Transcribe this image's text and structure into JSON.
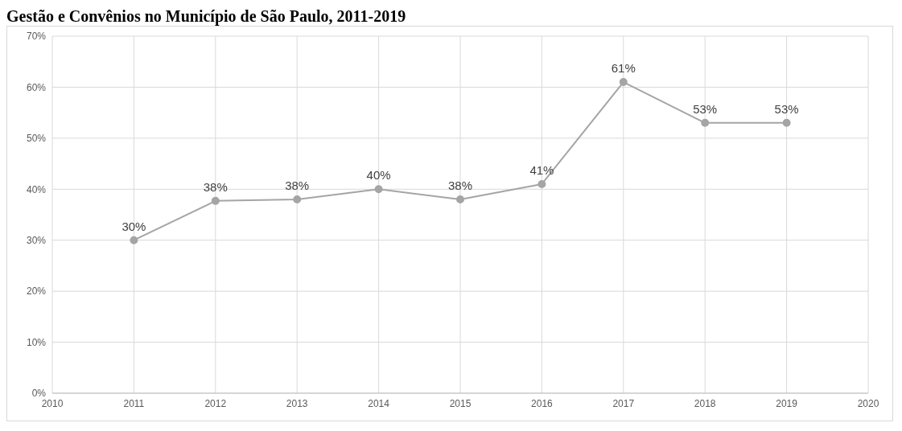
{
  "chart_data": {
    "type": "line",
    "title": "Gestão e Convênios no Município de São Paulo, 2011-2019",
    "x": [
      2011,
      2012,
      2013,
      2014,
      2015,
      2016,
      2017,
      2018,
      2019
    ],
    "series": [
      {
        "color": "#a5a5a5",
        "values": [
          30,
          37.7,
          38,
          40,
          38,
          41,
          61,
          53,
          53
        ],
        "value_labels": [
          "30%",
          "38%",
          "38%",
          "40%",
          "38%",
          "41%",
          "61%",
          "53%",
          "53%"
        ]
      }
    ],
    "xlim": [
      2010,
      2020
    ],
    "xticks": [
      2010,
      2011,
      2012,
      2013,
      2014,
      2015,
      2016,
      2017,
      2018,
      2019,
      2020
    ],
    "ylim": [
      0,
      70
    ],
    "yticks": [
      {
        "value": 0,
        "label": "0%"
      },
      {
        "value": 10,
        "label": "10%"
      },
      {
        "value": 20,
        "label": "20%"
      },
      {
        "value": 30,
        "label": "30%"
      },
      {
        "value": 40,
        "label": "40%"
      },
      {
        "value": 50,
        "label": "50%"
      },
      {
        "value": 60,
        "label": "60%"
      },
      {
        "value": 70,
        "label": "70%"
      }
    ],
    "grid": true,
    "marker": "circle",
    "line_style": "solid",
    "legend": false
  }
}
